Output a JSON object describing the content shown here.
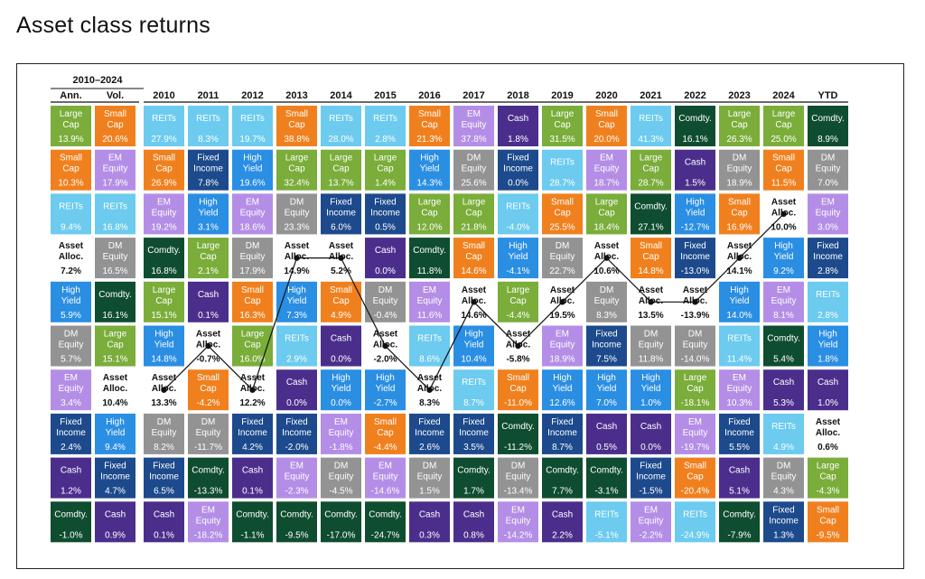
{
  "title": "Asset class returns",
  "chart_data": {
    "type": "table",
    "period_label": "2010–2024",
    "summary_headers": [
      "Ann.",
      "Vol."
    ],
    "years": [
      "2010",
      "2011",
      "2012",
      "2013",
      "2014",
      "2015",
      "2016",
      "2017",
      "2018",
      "2019",
      "2020",
      "2021",
      "2022",
      "2023",
      "2024",
      "YTD"
    ],
    "colors": {
      "Large Cap": "#7aad3a",
      "Small Cap": "#f0801e",
      "REITs": "#6ccbee",
      "EM Equity": "#b48ee6",
      "DM Equity": "#939393",
      "Fixed Income": "#1d4a8c",
      "High Yield": "#2a8ee3",
      "Cash": "#4b2e8c",
      "Comdty.": "#0f4d30",
      "Asset Alloc.": "#ffffff"
    },
    "summary_columns": [
      [
        {
          "asset": "Large Cap",
          "value": "13.9%"
        },
        {
          "asset": "Small Cap",
          "value": "10.3%"
        },
        {
          "asset": "REITs",
          "value": "9.4%"
        },
        {
          "asset": "Asset Alloc.",
          "value": "7.2%"
        },
        {
          "asset": "High Yield",
          "value": "5.9%"
        },
        {
          "asset": "DM Equity",
          "value": "5.7%"
        },
        {
          "asset": "EM Equity",
          "value": "3.4%"
        },
        {
          "asset": "Fixed Income",
          "value": "2.4%"
        },
        {
          "asset": "Cash",
          "value": "1.2%"
        },
        {
          "asset": "Comdty.",
          "value": "-1.0%"
        }
      ],
      [
        {
          "asset": "Small Cap",
          "value": "20.6%"
        },
        {
          "asset": "EM Equity",
          "value": "17.9%"
        },
        {
          "asset": "REITs",
          "value": "16.8%"
        },
        {
          "asset": "DM Equity",
          "value": "16.5%"
        },
        {
          "asset": "Comdty.",
          "value": "16.1%"
        },
        {
          "asset": "Large Cap",
          "value": "15.1%"
        },
        {
          "asset": "Asset Alloc.",
          "value": "10.4%"
        },
        {
          "asset": "High Yield",
          "value": "9.4%"
        },
        {
          "asset": "Fixed Income",
          "value": "4.7%"
        },
        {
          "asset": "Cash",
          "value": "0.9%"
        }
      ]
    ],
    "year_columns": [
      [
        {
          "asset": "REITs",
          "value": "27.9%"
        },
        {
          "asset": "Small Cap",
          "value": "26.9%"
        },
        {
          "asset": "EM Equity",
          "value": "19.2%"
        },
        {
          "asset": "Comdty.",
          "value": "16.8%"
        },
        {
          "asset": "Large Cap",
          "value": "15.1%"
        },
        {
          "asset": "High Yield",
          "value": "14.8%"
        },
        {
          "asset": "Asset Alloc.",
          "value": "13.3%"
        },
        {
          "asset": "DM Equity",
          "value": "8.2%"
        },
        {
          "asset": "Fixed Income",
          "value": "6.5%"
        },
        {
          "asset": "Cash",
          "value": "0.1%"
        }
      ],
      [
        {
          "asset": "REITs",
          "value": "8.3%"
        },
        {
          "asset": "Fixed Income",
          "value": "7.8%"
        },
        {
          "asset": "High Yield",
          "value": "3.1%"
        },
        {
          "asset": "Large Cap",
          "value": "2.1%"
        },
        {
          "asset": "Cash",
          "value": "0.1%"
        },
        {
          "asset": "Asset Alloc.",
          "value": "-0.7%"
        },
        {
          "asset": "Small Cap",
          "value": "-4.2%"
        },
        {
          "asset": "DM Equity",
          "value": "-11.7%"
        },
        {
          "asset": "Comdty.",
          "value": "-13.3%"
        },
        {
          "asset": "EM Equity",
          "value": "-18.2%"
        }
      ],
      [
        {
          "asset": "REITs",
          "value": "19.7%"
        },
        {
          "asset": "High Yield",
          "value": "19.6%"
        },
        {
          "asset": "EM Equity",
          "value": "18.6%"
        },
        {
          "asset": "DM Equity",
          "value": "17.9%"
        },
        {
          "asset": "Small Cap",
          "value": "16.3%"
        },
        {
          "asset": "Large Cap",
          "value": "16.0%"
        },
        {
          "asset": "Asset Alloc.",
          "value": "12.2%"
        },
        {
          "asset": "Fixed Income",
          "value": "4.2%"
        },
        {
          "asset": "Cash",
          "value": "0.1%"
        },
        {
          "asset": "Comdty.",
          "value": "-1.1%"
        }
      ],
      [
        {
          "asset": "Small Cap",
          "value": "38.8%"
        },
        {
          "asset": "Large Cap",
          "value": "32.4%"
        },
        {
          "asset": "DM Equity",
          "value": "23.3%"
        },
        {
          "asset": "Asset Alloc.",
          "value": "14.9%"
        },
        {
          "asset": "High Yield",
          "value": "7.3%"
        },
        {
          "asset": "REITs",
          "value": "2.9%"
        },
        {
          "asset": "Cash",
          "value": "0.0%"
        },
        {
          "asset": "Fixed Income",
          "value": "-2.0%"
        },
        {
          "asset": "EM Equity",
          "value": "-2.3%"
        },
        {
          "asset": "Comdty.",
          "value": "-9.5%"
        }
      ],
      [
        {
          "asset": "REITs",
          "value": "28.0%"
        },
        {
          "asset": "Large Cap",
          "value": "13.7%"
        },
        {
          "asset": "Fixed Income",
          "value": "6.0%"
        },
        {
          "asset": "Asset Alloc.",
          "value": "5.2%"
        },
        {
          "asset": "Small Cap",
          "value": "4.9%"
        },
        {
          "asset": "Cash",
          "value": "0.0%"
        },
        {
          "asset": "High Yield",
          "value": "0.0%"
        },
        {
          "asset": "EM Equity",
          "value": "-1.8%"
        },
        {
          "asset": "DM Equity",
          "value": "-4.5%"
        },
        {
          "asset": "Comdty.",
          "value": "-17.0%"
        }
      ],
      [
        {
          "asset": "REITs",
          "value": "2.8%"
        },
        {
          "asset": "Large Cap",
          "value": "1.4%"
        },
        {
          "asset": "Fixed Income",
          "value": "0.5%"
        },
        {
          "asset": "Cash",
          "value": "0.0%"
        },
        {
          "asset": "DM Equity",
          "value": "-0.4%"
        },
        {
          "asset": "Asset Alloc.",
          "value": "-2.0%"
        },
        {
          "asset": "High Yield",
          "value": "-2.7%"
        },
        {
          "asset": "Small Cap",
          "value": "-4.4%"
        },
        {
          "asset": "EM Equity",
          "value": "-14.6%"
        },
        {
          "asset": "Comdty.",
          "value": "-24.7%"
        }
      ],
      [
        {
          "asset": "Small Cap",
          "value": "21.3%"
        },
        {
          "asset": "High Yield",
          "value": "14.3%"
        },
        {
          "asset": "Large Cap",
          "value": "12.0%"
        },
        {
          "asset": "Comdty.",
          "value": "11.8%"
        },
        {
          "asset": "EM Equity",
          "value": "11.6%"
        },
        {
          "asset": "REITs",
          "value": "8.6%"
        },
        {
          "asset": "Asset Alloc.",
          "value": "8.3%"
        },
        {
          "asset": "Fixed Income",
          "value": "2.6%"
        },
        {
          "asset": "DM Equity",
          "value": "1.5%"
        },
        {
          "asset": "Cash",
          "value": "0.3%"
        }
      ],
      [
        {
          "asset": "EM Equity",
          "value": "37.8%"
        },
        {
          "asset": "DM Equity",
          "value": "25.6%"
        },
        {
          "asset": "Large Cap",
          "value": "21.8%"
        },
        {
          "asset": "Small Cap",
          "value": "14.6%"
        },
        {
          "asset": "Asset Alloc.",
          "value": "14.6%"
        },
        {
          "asset": "High Yield",
          "value": "10.4%"
        },
        {
          "asset": "REITs",
          "value": "8.7%"
        },
        {
          "asset": "Fixed Income",
          "value": "3.5%"
        },
        {
          "asset": "Comdty.",
          "value": "1.7%"
        },
        {
          "asset": "Cash",
          "value": "0.8%"
        }
      ],
      [
        {
          "asset": "Cash",
          "value": "1.8%"
        },
        {
          "asset": "Fixed Income",
          "value": "0.0%"
        },
        {
          "asset": "REITs",
          "value": "-4.0%"
        },
        {
          "asset": "High Yield",
          "value": "-4.1%"
        },
        {
          "asset": "Large Cap",
          "value": "-4.4%"
        },
        {
          "asset": "Asset Alloc.",
          "value": "-5.8%"
        },
        {
          "asset": "Small Cap",
          "value": "-11.0%"
        },
        {
          "asset": "Comdty.",
          "value": "-11.2%"
        },
        {
          "asset": "DM Equity",
          "value": "-13.4%"
        },
        {
          "asset": "EM Equity",
          "value": "-14.2%"
        }
      ],
      [
        {
          "asset": "Large Cap",
          "value": "31.5%"
        },
        {
          "asset": "REITs",
          "value": "28.7%"
        },
        {
          "asset": "Small Cap",
          "value": "25.5%"
        },
        {
          "asset": "DM Equity",
          "value": "22.7%"
        },
        {
          "asset": "Asset Alloc.",
          "value": "19.5%"
        },
        {
          "asset": "EM Equity",
          "value": "18.9%"
        },
        {
          "asset": "High Yield",
          "value": "12.6%"
        },
        {
          "asset": "Fixed Income",
          "value": "8.7%"
        },
        {
          "asset": "Comdty.",
          "value": "7.7%"
        },
        {
          "asset": "Cash",
          "value": "2.2%"
        }
      ],
      [
        {
          "asset": "Small Cap",
          "value": "20.0%"
        },
        {
          "asset": "EM Equity",
          "value": "18.7%"
        },
        {
          "asset": "Large Cap",
          "value": "18.4%"
        },
        {
          "asset": "Asset Alloc.",
          "value": "10.6%"
        },
        {
          "asset": "DM Equity",
          "value": "8.3%"
        },
        {
          "asset": "Fixed Income",
          "value": "7.5%"
        },
        {
          "asset": "High Yield",
          "value": "7.0%"
        },
        {
          "asset": "Cash",
          "value": "0.5%"
        },
        {
          "asset": "Comdty.",
          "value": "-3.1%"
        },
        {
          "asset": "REITs",
          "value": "-5.1%"
        }
      ],
      [
        {
          "asset": "REITs",
          "value": "41.3%"
        },
        {
          "asset": "Large Cap",
          "value": "28.7%"
        },
        {
          "asset": "Comdty.",
          "value": "27.1%"
        },
        {
          "asset": "Small Cap",
          "value": "14.8%"
        },
        {
          "asset": "Asset Alloc.",
          "value": "13.5%"
        },
        {
          "asset": "DM Equity",
          "value": "11.8%"
        },
        {
          "asset": "High Yield",
          "value": "1.0%"
        },
        {
          "asset": "Cash",
          "value": "0.0%"
        },
        {
          "asset": "Fixed Income",
          "value": "-1.5%"
        },
        {
          "asset": "EM Equity",
          "value": "-2.2%"
        }
      ],
      [
        {
          "asset": "Comdty.",
          "value": "16.1%"
        },
        {
          "asset": "Cash",
          "value": "1.5%"
        },
        {
          "asset": "High Yield",
          "value": "-12.7%"
        },
        {
          "asset": "Fixed Income",
          "value": "-13.0%"
        },
        {
          "asset": "Asset Alloc.",
          "value": "-13.9%"
        },
        {
          "asset": "DM Equity",
          "value": "-14.0%"
        },
        {
          "asset": "Large Cap",
          "value": "-18.1%"
        },
        {
          "asset": "EM Equity",
          "value": "-19.7%"
        },
        {
          "asset": "Small Cap",
          "value": "-20.4%"
        },
        {
          "asset": "REITs",
          "value": "-24.9%"
        }
      ],
      [
        {
          "asset": "Large Cap",
          "value": "26.3%"
        },
        {
          "asset": "DM Equity",
          "value": "18.9%"
        },
        {
          "asset": "Small Cap",
          "value": "16.9%"
        },
        {
          "asset": "Asset Alloc.",
          "value": "14.1%"
        },
        {
          "asset": "High Yield",
          "value": "14.0%"
        },
        {
          "asset": "REITs",
          "value": "11.4%"
        },
        {
          "asset": "EM Equity",
          "value": "10.3%"
        },
        {
          "asset": "Fixed Income",
          "value": "5.5%"
        },
        {
          "asset": "Cash",
          "value": "5.1%"
        },
        {
          "asset": "Comdty.",
          "value": "-7.9%"
        }
      ],
      [
        {
          "asset": "Large Cap",
          "value": "25.0%"
        },
        {
          "asset": "Small Cap",
          "value": "11.5%"
        },
        {
          "asset": "Asset Alloc.",
          "value": "10.0%"
        },
        {
          "asset": "High Yield",
          "value": "9.2%"
        },
        {
          "asset": "EM Equity",
          "value": "8.1%"
        },
        {
          "asset": "Comdty.",
          "value": "5.4%"
        },
        {
          "asset": "Cash",
          "value": "5.3%"
        },
        {
          "asset": "REITs",
          "value": "4.9%"
        },
        {
          "asset": "DM Equity",
          "value": "4.3%"
        },
        {
          "asset": "Fixed Income",
          "value": "1.3%"
        }
      ],
      [
        {
          "asset": "Comdty.",
          "value": "8.9%"
        },
        {
          "asset": "DM Equity",
          "value": "7.0%"
        },
        {
          "asset": "EM Equity",
          "value": "3.0%"
        },
        {
          "asset": "Fixed Income",
          "value": "2.8%"
        },
        {
          "asset": "REITs",
          "value": "2.8%"
        },
        {
          "asset": "High Yield",
          "value": "1.8%"
        },
        {
          "asset": "Cash",
          "value": "1.0%"
        },
        {
          "asset": "Asset Alloc.",
          "value": "0.6%"
        },
        {
          "asset": "Large Cap",
          "value": "-4.3%"
        },
        {
          "asset": "Small Cap",
          "value": "-9.5%"
        }
      ]
    ]
  }
}
